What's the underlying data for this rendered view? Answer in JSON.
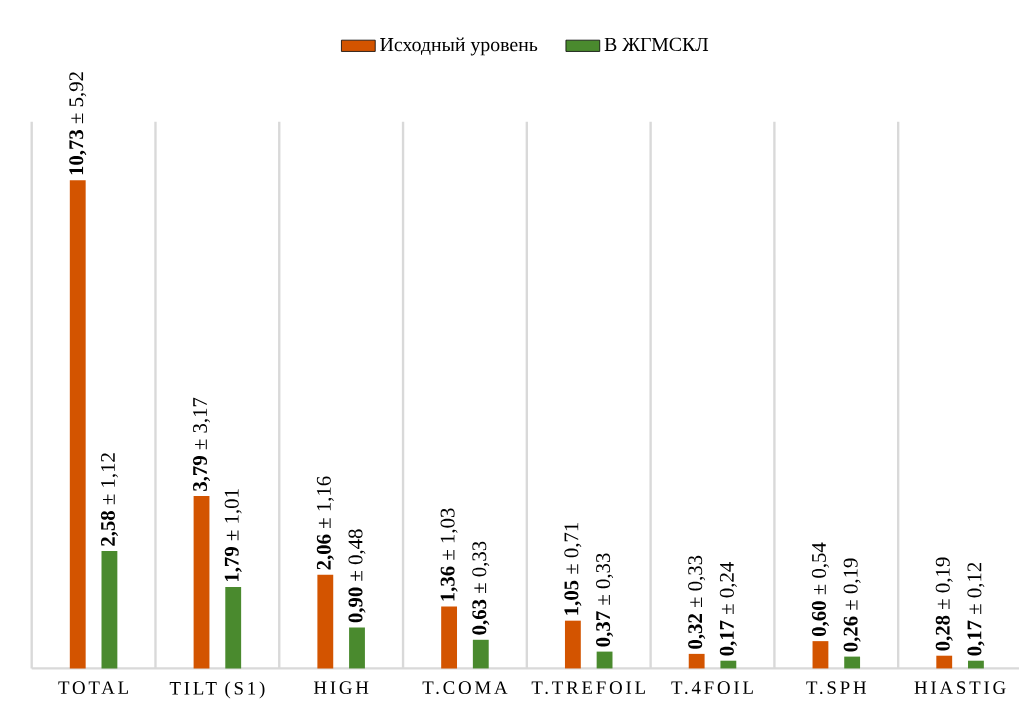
{
  "chart_data": {
    "type": "bar",
    "categories": [
      "TOTAL",
      "TILT (S1)",
      "HIGH",
      "T.COMA",
      "T.TREFOIL",
      "T.4FOIL",
      "T.SPH",
      "HIASTIG"
    ],
    "series": [
      {
        "name": "Исходный уровень",
        "color": "#d35400",
        "values": [
          10.73,
          3.79,
          2.06,
          1.36,
          1.05,
          0.32,
          0.6,
          0.28
        ],
        "value_labels": [
          "**10,73** ± 5,92",
          "**3,79** ± 3,17",
          "**2,06** ± 1,16",
          "**1,36** ± 1,03",
          "**1,05** ± 0,71",
          "**0,32** ± 0,33",
          "**0,60** ± 0,54",
          "**0,28** ± 0,19"
        ]
      },
      {
        "name": "В ЖГМСКЛ",
        "color": "#4a8a2e",
        "values": [
          2.58,
          1.79,
          0.9,
          0.63,
          0.37,
          0.17,
          0.26,
          0.17
        ],
        "value_labels": [
          "**2,58** ± 1,12",
          "**1,79** ± 1,01",
          "**0,90** ± 0,48",
          "**0,63** ± 0,33",
          "**0,37** ± 0,33",
          "**0,17** ± 0,24",
          "**0,26** ± 0,19",
          "**0,17** ± 0,12"
        ]
      }
    ],
    "grid": "x",
    "legend": "top"
  }
}
